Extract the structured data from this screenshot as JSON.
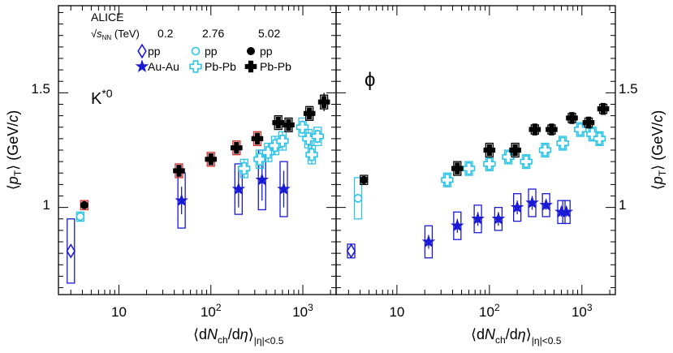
{
  "colors": {
    "rhic": "#1a1ad6",
    "lhc276": "#2ec4e6",
    "lhc502": "#000000",
    "box502_k": "#d42a2a",
    "axis": "#000000"
  },
  "text": {
    "experiment": "ALICE",
    "sqrts_label": "√sNN (TeV)",
    "energy_02": "0.2",
    "energy_276": "2.76",
    "energy_502": "5.02",
    "pp": "pp",
    "auau": "Au-Au",
    "pbpb": "Pb-Pb",
    "ylabel": "⟨pT⟩ (GeV/c)",
    "xlabel": "⟨dNch/dη⟩|η|<0.5"
  },
  "chart_data": [
    {
      "type": "scatter",
      "particle": "K*0",
      "xscale": "log",
      "xlim": [
        2.2,
        2300
      ],
      "ylim": [
        0.62,
        1.88
      ],
      "xticks": [
        10,
        100,
        1000
      ],
      "xtick_labels": [
        "10",
        "10^2",
        "10^3"
      ],
      "yticks": [
        1.0,
        1.5
      ],
      "ytick_labels": [
        "1",
        "1.5"
      ],
      "series": [
        {
          "name": "pp 0.2 TeV",
          "marker": "diamond-open",
          "color": "rhic",
          "points": [
            {
              "x": 3.0,
              "y": 0.81,
              "sys": 0.14,
              "stat": 0.02
            }
          ]
        },
        {
          "name": "Au-Au 0.2 TeV",
          "marker": "star",
          "color": "rhic",
          "points": [
            {
              "x": 48,
              "y": 1.03,
              "sys": 0.12,
              "stat": 0.06
            },
            {
              "x": 200,
              "y": 1.08,
              "sys": 0.11,
              "stat": 0.08
            },
            {
              "x": 360,
              "y": 1.12,
              "sys": 0.13,
              "stat": 0.09
            },
            {
              "x": 620,
              "y": 1.08,
              "sys": 0.12,
              "stat": 0.08
            }
          ]
        },
        {
          "name": "pp 2.76 TeV",
          "marker": "circle-open",
          "color": "lhc276",
          "points": [
            {
              "x": 3.8,
              "y": 0.96,
              "sys": 0.02,
              "stat": 0.01
            }
          ]
        },
        {
          "name": "Pb-Pb 2.76 TeV",
          "marker": "cross-open",
          "color": "lhc276",
          "points": [
            {
              "x": 230,
              "y": 1.17,
              "sys": 0.04,
              "stat": 0.04
            },
            {
              "x": 340,
              "y": 1.21,
              "sys": 0.04,
              "stat": 0.04
            },
            {
              "x": 420,
              "y": 1.24,
              "sys": 0.04,
              "stat": 0.04
            },
            {
              "x": 500,
              "y": 1.27,
              "sys": 0.04,
              "stat": 0.04
            },
            {
              "x": 600,
              "y": 1.29,
              "sys": 0.04,
              "stat": 0.04
            },
            {
              "x": 990,
              "y": 1.35,
              "sys": 0.04,
              "stat": 0.03
            },
            {
              "x": 1150,
              "y": 1.3,
              "sys": 0.04,
              "stat": 0.04
            },
            {
              "x": 1250,
              "y": 1.23,
              "sys": 0.04,
              "stat": 0.04
            },
            {
              "x": 1450,
              "y": 1.31,
              "sys": 0.04,
              "stat": 0.03
            }
          ]
        },
        {
          "name": "pp 5.02 TeV",
          "marker": "circle",
          "color": "lhc502",
          "points": [
            {
              "x": 4.2,
              "y": 1.01,
              "sys": 0.02,
              "stat": 0.01
            }
          ]
        },
        {
          "name": "Pb-Pb 5.02 TeV",
          "marker": "cross",
          "color": "lhc502",
          "points": [
            {
              "x": 45,
              "y": 1.16,
              "sys": 0.03,
              "stat": 0.02
            },
            {
              "x": 100,
              "y": 1.21,
              "sys": 0.03,
              "stat": 0.02
            },
            {
              "x": 190,
              "y": 1.26,
              "sys": 0.03,
              "stat": 0.02
            },
            {
              "x": 320,
              "y": 1.3,
              "sys": 0.03,
              "stat": 0.02
            },
            {
              "x": 540,
              "y": 1.37,
              "sys": 0.03,
              "stat": 0.02
            },
            {
              "x": 700,
              "y": 1.36,
              "sys": 0.03,
              "stat": 0.02
            },
            {
              "x": 1180,
              "y": 1.41,
              "sys": 0.03,
              "stat": 0.02
            },
            {
              "x": 1700,
              "y": 1.46,
              "sys": 0.03,
              "stat": 0.04
            }
          ]
        }
      ]
    },
    {
      "type": "scatter",
      "particle": "ϕ",
      "xscale": "log",
      "xlim": [
        2.2,
        2300
      ],
      "ylim": [
        0.62,
        1.88
      ],
      "xticks": [
        10,
        100,
        1000
      ],
      "xtick_labels": [
        "10",
        "10^2",
        "10^3"
      ],
      "yticks": [
        1.0,
        1.5
      ],
      "ytick_labels": [
        "1",
        "1.5"
      ],
      "series": [
        {
          "name": "pp 0.2 TeV",
          "marker": "diamond-open",
          "color": "rhic",
          "points": [
            {
              "x": 3.2,
              "y": 0.81,
              "sys": 0.03,
              "stat": 0.02
            }
          ]
        },
        {
          "name": "Au-Au 0.2 TeV",
          "marker": "star",
          "color": "rhic",
          "points": [
            {
              "x": 22,
              "y": 0.85,
              "sys": 0.07,
              "stat": 0.03
            },
            {
              "x": 45,
              "y": 0.92,
              "sys": 0.06,
              "stat": 0.03
            },
            {
              "x": 75,
              "y": 0.95,
              "sys": 0.06,
              "stat": 0.03
            },
            {
              "x": 125,
              "y": 0.95,
              "sys": 0.05,
              "stat": 0.03
            },
            {
              "x": 200,
              "y": 1.0,
              "sys": 0.06,
              "stat": 0.03
            },
            {
              "x": 290,
              "y": 1.02,
              "sys": 0.06,
              "stat": 0.03
            },
            {
              "x": 410,
              "y": 1.01,
              "sys": 0.05,
              "stat": 0.02
            },
            {
              "x": 600,
              "y": 0.98,
              "sys": 0.05,
              "stat": 0.02
            },
            {
              "x": 680,
              "y": 0.98,
              "sys": 0.05,
              "stat": 0.02
            }
          ]
        },
        {
          "name": "pp 2.76 TeV",
          "marker": "circle-open",
          "color": "lhc276",
          "points": [
            {
              "x": 3.8,
              "y": 1.04,
              "sys": 0.09,
              "stat": 0.02
            }
          ]
        },
        {
          "name": "Pb-Pb 2.76 TeV",
          "marker": "cross-open",
          "color": "lhc276",
          "points": [
            {
              "x": 35,
              "y": 1.12,
              "sys": 0.03,
              "stat": 0.02
            },
            {
              "x": 60,
              "y": 1.17,
              "sys": 0.03,
              "stat": 0.02
            },
            {
              "x": 100,
              "y": 1.19,
              "sys": 0.03,
              "stat": 0.02
            },
            {
              "x": 160,
              "y": 1.22,
              "sys": 0.03,
              "stat": 0.02
            },
            {
              "x": 250,
              "y": 1.2,
              "sys": 0.03,
              "stat": 0.02
            },
            {
              "x": 400,
              "y": 1.25,
              "sys": 0.03,
              "stat": 0.02
            },
            {
              "x": 620,
              "y": 1.28,
              "sys": 0.03,
              "stat": 0.02
            },
            {
              "x": 960,
              "y": 1.34,
              "sys": 0.03,
              "stat": 0.02
            },
            {
              "x": 1300,
              "y": 1.32,
              "sys": 0.03,
              "stat": 0.02
            },
            {
              "x": 1550,
              "y": 1.3,
              "sys": 0.03,
              "stat": 0.02
            }
          ]
        },
        {
          "name": "pp 5.02 TeV",
          "marker": "circle",
          "color": "lhc502",
          "points": [
            {
              "x": 4.4,
              "y": 1.12,
              "sys": 0.02,
              "stat": 0.01
            }
          ]
        },
        {
          "name": "Pb-Pb 5.02 TeV",
          "marker": "cross",
          "color": "lhc502",
          "points": [
            {
              "x": 45,
              "y": 1.17,
              "sys": 0.03,
              "stat": 0.02
            },
            {
              "x": 100,
              "y": 1.25,
              "sys": 0.03,
              "stat": 0.02
            },
            {
              "x": 190,
              "y": 1.25,
              "sys": 0.03,
              "stat": 0.02
            },
            {
              "x": 310,
              "y": 1.34,
              "sys": 0.02,
              "stat": 0.02
            },
            {
              "x": 470,
              "y": 1.34,
              "sys": 0.02,
              "stat": 0.02
            },
            {
              "x": 780,
              "y": 1.39,
              "sys": 0.02,
              "stat": 0.02
            },
            {
              "x": 1180,
              "y": 1.37,
              "sys": 0.02,
              "stat": 0.02
            },
            {
              "x": 1700,
              "y": 1.43,
              "sys": 0.02,
              "stat": 0.02
            }
          ]
        }
      ]
    }
  ]
}
